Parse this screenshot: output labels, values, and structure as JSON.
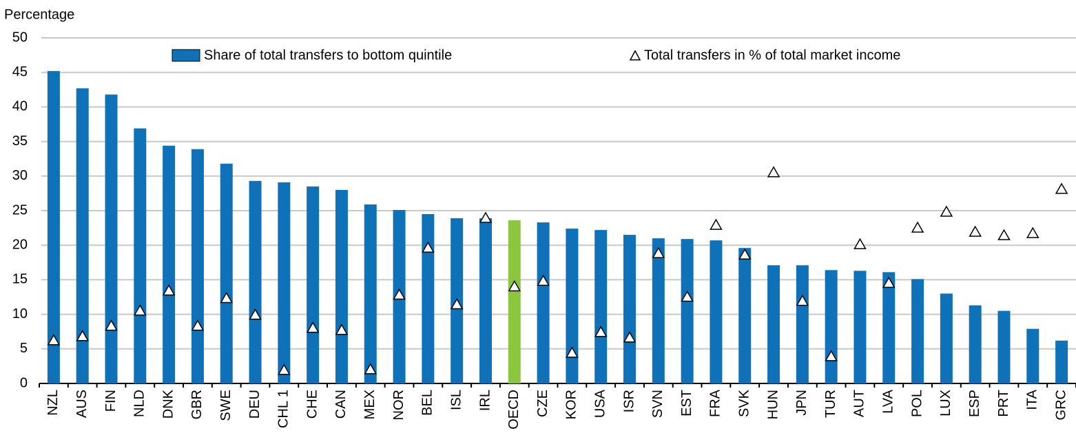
{
  "chart_data": {
    "type": "bar",
    "y_axis_label": "Percentage",
    "categories": [
      "NZL",
      "AUS",
      "FIN",
      "NLD",
      "DNK",
      "GBR",
      "SWE",
      "DEU",
      "CHL 1",
      "CHE",
      "CAN",
      "MEX",
      "NOR",
      "BEL",
      "ISL",
      "IRL",
      "OECD",
      "CZE",
      "KOR",
      "USA",
      "ISR",
      "SVN",
      "EST",
      "FRA",
      "SVK",
      "HUN",
      "JPN",
      "TUR",
      "AUT",
      "LVA",
      "POL",
      "LUX",
      "ESP",
      "PRT",
      "ITA",
      "GRC"
    ],
    "series": [
      {
        "name": "Share of total transfers to bottom quintile",
        "type": "bar",
        "color": "#0f72b8",
        "colors": [
          "#0f72b8",
          "#0f72b8",
          "#0f72b8",
          "#0f72b8",
          "#0f72b8",
          "#0f72b8",
          "#0f72b8",
          "#0f72b8",
          "#0f72b8",
          "#0f72b8",
          "#0f72b8",
          "#0f72b8",
          "#0f72b8",
          "#0f72b8",
          "#0f72b8",
          "#0f72b8",
          "#8cc63f",
          "#0f72b8",
          "#0f72b8",
          "#0f72b8",
          "#0f72b8",
          "#0f72b8",
          "#0f72b8",
          "#0f72b8",
          "#0f72b8",
          "#0f72b8",
          "#0f72b8",
          "#0f72b8",
          "#0f72b8",
          "#0f72b8",
          "#0f72b8",
          "#0f72b8",
          "#0f72b8",
          "#0f72b8",
          "#0f72b8",
          "#0f72b8"
        ],
        "values": [
          45.2,
          42.7,
          41.8,
          36.9,
          34.4,
          33.9,
          31.8,
          29.3,
          29.1,
          28.5,
          28.0,
          25.9,
          25.1,
          24.5,
          23.9,
          23.9,
          23.6,
          23.3,
          22.4,
          22.2,
          21.5,
          21.0,
          20.9,
          20.7,
          19.6,
          17.1,
          17.1,
          16.4,
          16.3,
          16.1,
          15.1,
          13.0,
          11.3,
          10.5,
          7.9,
          6.2
        ]
      },
      {
        "name": "Total transfers in % of total market income",
        "type": "triangle",
        "color": "#ffffff",
        "values": [
          6.2,
          6.8,
          8.3,
          10.5,
          13.4,
          8.3,
          12.3,
          9.9,
          1.9,
          8.0,
          7.7,
          2.0,
          12.8,
          19.6,
          11.4,
          23.9,
          14.0,
          14.8,
          4.4,
          7.4,
          6.6,
          18.8,
          12.5,
          22.9,
          18.6,
          30.5,
          11.9,
          3.9,
          20.1,
          14.5,
          22.5,
          24.8,
          21.9,
          21.4,
          21.7,
          28.1
        ]
      }
    ],
    "ylim": [
      0,
      50
    ],
    "yticks": [
      0,
      5,
      10,
      15,
      20,
      25,
      30,
      35,
      40,
      45,
      50
    ],
    "grid": true
  }
}
